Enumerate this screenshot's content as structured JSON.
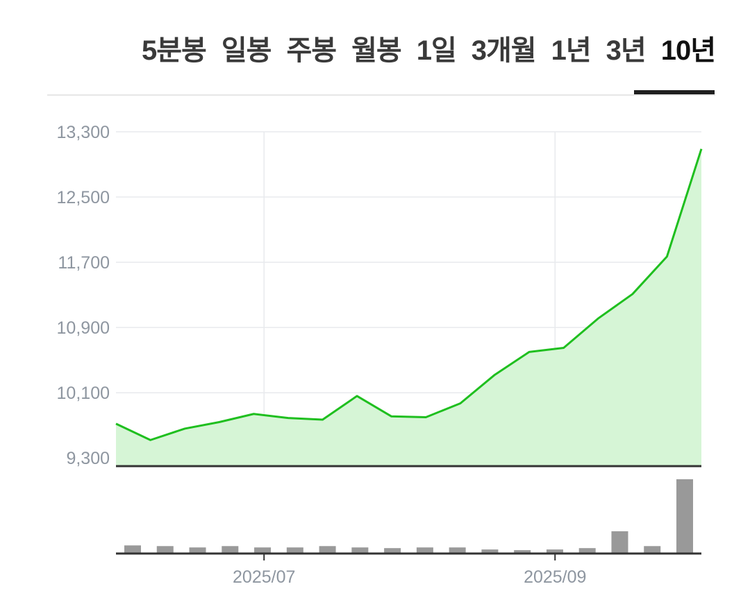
{
  "tabs": [
    {
      "label": "5분봉",
      "active": false
    },
    {
      "label": "일봉",
      "active": false
    },
    {
      "label": "주봉",
      "active": false
    },
    {
      "label": "월봉",
      "active": false
    },
    {
      "label": "1일",
      "active": false
    },
    {
      "label": "3개월",
      "active": false
    },
    {
      "label": "1년",
      "active": false
    },
    {
      "label": "3년",
      "active": false
    },
    {
      "label": "10년",
      "active": true
    }
  ],
  "colors": {
    "line": "#1fbf1f",
    "area": "#d6f5d6",
    "grid": "#e8eaed",
    "volume_bar": "#999999",
    "axis": "#333333"
  },
  "chart_data": [
    {
      "type": "area",
      "yticks": [
        "13,300",
        "12,500",
        "11,700",
        "10,900",
        "10,100",
        "9,300"
      ],
      "ytick_values": [
        13300,
        12500,
        11700,
        10900,
        10100,
        9300
      ],
      "ylim": [
        9200,
        13300
      ],
      "xticks": [
        "2025/07",
        "2025/09"
      ],
      "xtick_index": [
        4.3,
        12.75
      ],
      "grid": true,
      "x": [
        0,
        1,
        2,
        3,
        4,
        5,
        6,
        7,
        8,
        9,
        10,
        11,
        12,
        13,
        14,
        15,
        16,
        17
      ],
      "values": [
        9720,
        9520,
        9660,
        9740,
        9840,
        9790,
        9770,
        10060,
        9810,
        9800,
        9970,
        10320,
        10600,
        10650,
        11010,
        11310,
        11770,
        13090
      ]
    },
    {
      "type": "bar",
      "values": [
        12,
        11,
        9,
        11,
        9,
        9,
        11,
        9,
        8,
        9,
        9,
        6,
        5,
        6,
        8,
        33,
        11,
        110
      ],
      "ylim": [
        0,
        115
      ]
    }
  ]
}
